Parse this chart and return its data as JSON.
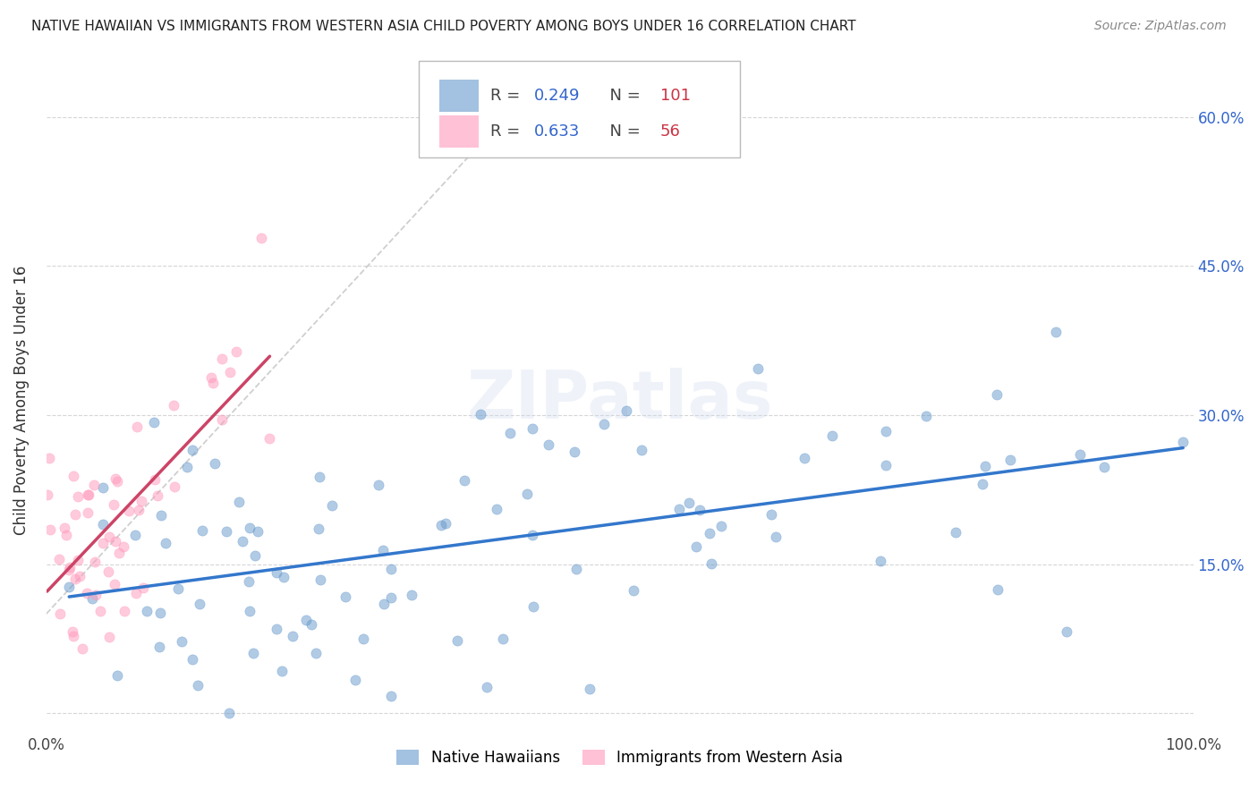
{
  "title": "NATIVE HAWAIIAN VS IMMIGRANTS FROM WESTERN ASIA CHILD POVERTY AMONG BOYS UNDER 16 CORRELATION CHART",
  "source": "Source: ZipAtlas.com",
  "ylabel": "Child Poverty Among Boys Under 16",
  "xlim": [
    0,
    1.0
  ],
  "ylim": [
    -0.02,
    0.65
  ],
  "yticks": [
    0.0,
    0.15,
    0.3,
    0.45,
    0.6
  ],
  "yticklabels": [
    "",
    "15.0%",
    "30.0%",
    "45.0%",
    "60.0%"
  ],
  "grid_color": "#cccccc",
  "background_color": "#ffffff",
  "blue_color": "#6699cc",
  "pink_color": "#ff99bb",
  "blue_line_color": "#3377cc",
  "pink_line_color": "#cc4466",
  "blue_label": "Native Hawaiians",
  "pink_label": "Immigrants from Western Asia",
  "blue_R": 0.249,
  "blue_N": 101,
  "pink_R": 0.633,
  "pink_N": 56,
  "legend_R_color": "#3366cc",
  "legend_N_color": "#cc3344",
  "title_fontsize": 11,
  "source_fontsize": 10,
  "tick_fontsize": 12
}
